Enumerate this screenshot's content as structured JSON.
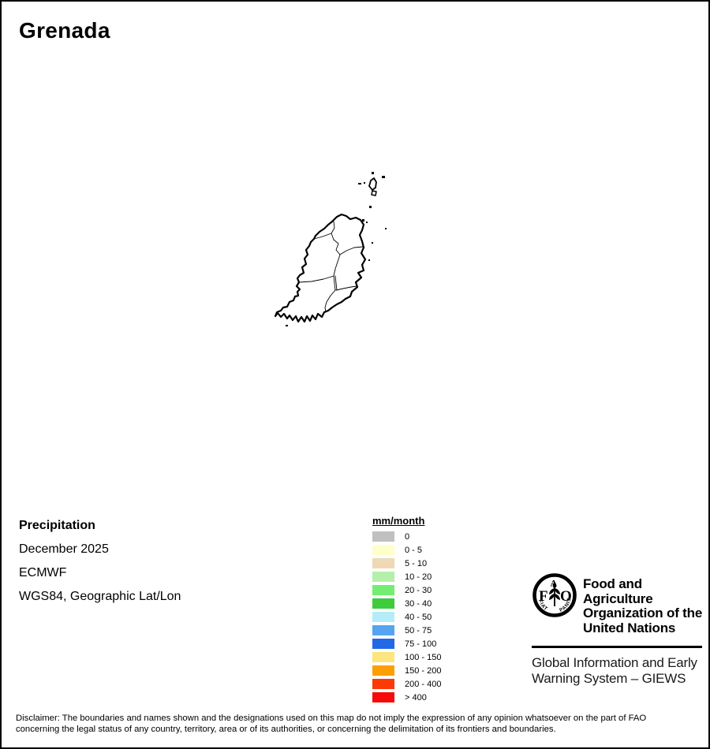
{
  "title": "Grenada",
  "info": {
    "parameter": "Precipitation",
    "period": "December 2025",
    "source": "ECMWF",
    "projection": "WGS84, Geographic Lat/Lon"
  },
  "legend": {
    "title": "mm/month",
    "entries": [
      {
        "label": "0",
        "color": "#c0c0c0"
      },
      {
        "label": "0 - 5",
        "color": "#ffffcc"
      },
      {
        "label": "5 - 10",
        "color": "#eed9b4"
      },
      {
        "label": "10 - 20",
        "color": "#b4f0aa"
      },
      {
        "label": "20 - 30",
        "color": "#73ee73"
      },
      {
        "label": "30 - 40",
        "color": "#3ccc3c"
      },
      {
        "label": "40 - 50",
        "color": "#b4ecf8"
      },
      {
        "label": "50 - 75",
        "color": "#55a4f0"
      },
      {
        "label": "75 - 100",
        "color": "#2169e6"
      },
      {
        "label": "100 - 150",
        "color": "#fde57f"
      },
      {
        "label": "150 - 200",
        "color": "#fc9f02"
      },
      {
        "label": "200 - 400",
        "color": "#fc3a06"
      },
      {
        "label": "> 400",
        "color": "#f70a0a"
      }
    ]
  },
  "fao": {
    "org_lines": [
      "Food and Agriculture",
      "Organization of the",
      "United Nations"
    ],
    "giews_lines": [
      "Global Information and Early",
      "Warning System – GIEWS"
    ],
    "logo_letters": {
      "f": "F",
      "a": "A",
      "o": "O"
    },
    "motto_left": "FIAT",
    "motto_right": "PANIS"
  },
  "disclaimer": {
    "line1": "Disclaimer: The boundaries and names shown and the designations used on this map do not imply the expression of any opinion whatsoever on the part of FAO",
    "line2": "concerning the legal status of any country, territory, area or of its authorities, or concerning the delimitation of its frontiers and boundaries."
  }
}
